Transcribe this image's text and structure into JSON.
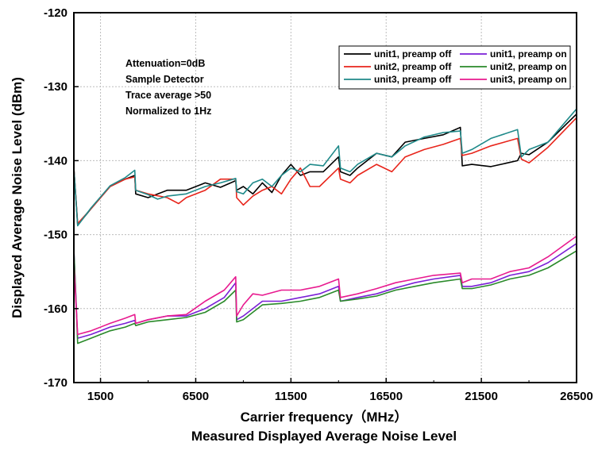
{
  "chart_data": {
    "type": "line",
    "title": "",
    "caption": "Measured Displayed Average Noise Level",
    "xlabel": "Carrier frequency（MHz）",
    "ylabel": "Displayed Average Noise Level (dBm)",
    "xlim": [
      100,
      26500
    ],
    "ylim": [
      -170,
      -120
    ],
    "xticks": [
      1500,
      6500,
      11500,
      16500,
      21500,
      26500
    ],
    "xtick_labels": [
      "1500",
      "6500",
      "11500",
      "16500",
      "21500",
      "26500"
    ],
    "yticks": [
      -120,
      -130,
      -140,
      -150,
      -160,
      -170
    ],
    "ytick_labels": [
      "-120",
      "-130",
      "-140",
      "-150",
      "-160",
      "-170"
    ],
    "grid": true,
    "legend_position": "top-right",
    "annotations": [
      "Attenuation=0dB",
      "Sample Detector",
      "Trace average >50",
      "Normalized to 1Hz"
    ],
    "series": [
      {
        "name": "unit1, preamp off",
        "color": "#000000",
        "x": [
          100,
          300,
          1000,
          2000,
          2800,
          3300,
          3350,
          4000,
          5000,
          6000,
          7000,
          7800,
          8600,
          8650,
          9000,
          9500,
          10000,
          10500,
          11000,
          11500,
          12000,
          12500,
          13200,
          14000,
          14100,
          14600,
          15000,
          16000,
          16800,
          17500,
          18500,
          19500,
          20400,
          20500,
          21000,
          22000,
          23400,
          23600,
          24000,
          25000,
          26500
        ],
        "y": [
          -141,
          -148.7,
          -146.5,
          -143.5,
          -142.5,
          -142,
          -144.5,
          -145,
          -144,
          -144,
          -143,
          -143.6,
          -142.7,
          -144,
          -143.5,
          -144.5,
          -143,
          -144.3,
          -142,
          -140.5,
          -142,
          -141.5,
          -141.5,
          -139.5,
          -141.5,
          -142,
          -141,
          -139,
          -139.5,
          -137.5,
          -137,
          -136.5,
          -135.5,
          -140.7,
          -140.5,
          -140.8,
          -140,
          -139,
          -139.2,
          -137.5,
          -133.7
        ]
      },
      {
        "name": "unit2, preamp off",
        "color": "#e8251b",
        "x": [
          100,
          300,
          1000,
          2000,
          2800,
          3300,
          3350,
          4000,
          5000,
          5600,
          6000,
          7000,
          7800,
          8600,
          8650,
          9000,
          9500,
          10000,
          10500,
          11000,
          11500,
          12000,
          12500,
          13000,
          14000,
          14100,
          14600,
          15000,
          16000,
          16800,
          17500,
          18500,
          19500,
          20400,
          20500,
          21000,
          22000,
          23400,
          23600,
          24000,
          25000,
          26500
        ],
        "y": [
          -141,
          -148.5,
          -146.5,
          -143.5,
          -142.5,
          -142.2,
          -144,
          -144.5,
          -145,
          -145.8,
          -145,
          -144,
          -142.5,
          -142.5,
          -145,
          -146,
          -144.8,
          -144,
          -143.5,
          -144.5,
          -142.5,
          -141,
          -143.5,
          -143.5,
          -141,
          -142.5,
          -143,
          -142,
          -140.5,
          -141.5,
          -139.5,
          -138.5,
          -137.8,
          -137,
          -139.3,
          -139,
          -138,
          -137,
          -139.8,
          -140.3,
          -138.2,
          -134.2
        ]
      },
      {
        "name": "unit3, preamp off",
        "color": "#1f8a8a",
        "x": [
          100,
          300,
          1000,
          2000,
          2800,
          3300,
          3350,
          4000,
          4500,
          5000,
          6000,
          7000,
          7800,
          8600,
          8650,
          9000,
          9500,
          10000,
          10500,
          11000,
          11500,
          12000,
          12500,
          13200,
          14000,
          14100,
          14600,
          15000,
          16000,
          16800,
          17500,
          18500,
          19500,
          20400,
          20500,
          21000,
          22000,
          23400,
          23600,
          24000,
          25000,
          26500
        ],
        "y": [
          -141,
          -148.8,
          -146.4,
          -143.4,
          -142.3,
          -141.3,
          -144,
          -144.6,
          -145.2,
          -144.8,
          -144.5,
          -143.5,
          -143,
          -142.4,
          -144.2,
          -144.5,
          -143,
          -142.5,
          -143.5,
          -142,
          -141,
          -141.5,
          -140.5,
          -140.7,
          -138,
          -141,
          -141.5,
          -140.5,
          -139,
          -139.5,
          -138,
          -136.8,
          -136.2,
          -136,
          -139,
          -138.5,
          -137,
          -135.8,
          -139.5,
          -138.5,
          -137.5,
          -133
        ]
      },
      {
        "name": "unit1, preamp on",
        "color": "#7a1fd6",
        "x": [
          100,
          300,
          1000,
          2000,
          2800,
          3300,
          3350,
          4000,
          5000,
          6000,
          7000,
          8000,
          8600,
          8650,
          9000,
          10000,
          11000,
          12000,
          13000,
          14000,
          14100,
          15000,
          16000,
          17000,
          18000,
          19000,
          20400,
          20500,
          21000,
          22000,
          23000,
          24000,
          25000,
          26500
        ],
        "y": [
          -152,
          -164,
          -163.5,
          -162.5,
          -162,
          -161.6,
          -162,
          -161.5,
          -161,
          -161,
          -160,
          -158.5,
          -156.5,
          -161.5,
          -161,
          -159,
          -159,
          -158.5,
          -158,
          -157,
          -159,
          -158.5,
          -158,
          -157.2,
          -156.5,
          -156,
          -155.5,
          -157,
          -157,
          -156.5,
          -155.5,
          -155,
          -153.8,
          -151.2
        ]
      },
      {
        "name": "unit2, preamp on",
        "color": "#2a8a2a",
        "x": [
          100,
          300,
          1000,
          2000,
          2800,
          3300,
          3350,
          4000,
          5000,
          6000,
          7000,
          8000,
          8600,
          8650,
          9000,
          10000,
          11000,
          12000,
          13000,
          14000,
          14100,
          15000,
          16000,
          17000,
          18000,
          19000,
          20400,
          20500,
          21000,
          22000,
          23000,
          24000,
          25000,
          26500
        ],
        "y": [
          -152,
          -164.7,
          -164,
          -163,
          -162.5,
          -162,
          -162.3,
          -161.8,
          -161.5,
          -161.2,
          -160.5,
          -159,
          -157.5,
          -161.8,
          -161.5,
          -159.5,
          -159.3,
          -159,
          -158.5,
          -157.5,
          -159,
          -158.7,
          -158.3,
          -157.5,
          -157,
          -156.5,
          -156,
          -157.3,
          -157.3,
          -156.8,
          -156,
          -155.5,
          -154.5,
          -152.2
        ]
      },
      {
        "name": "unit3, preamp on",
        "color": "#e81a8f",
        "x": [
          100,
          300,
          1000,
          2000,
          2800,
          3300,
          3350,
          4000,
          5000,
          6000,
          7000,
          8000,
          8600,
          8650,
          9000,
          9500,
          10000,
          11000,
          12000,
          13000,
          14000,
          14100,
          15000,
          16000,
          17000,
          18000,
          19000,
          20400,
          20500,
          21000,
          22000,
          23000,
          24000,
          25000,
          26500
        ],
        "y": [
          -154,
          -163.5,
          -163,
          -162,
          -161.3,
          -160.8,
          -162,
          -161.5,
          -161,
          -160.8,
          -159,
          -157.5,
          -155.7,
          -161,
          -159.5,
          -158,
          -158.2,
          -157.5,
          -157.5,
          -157,
          -156,
          -158.5,
          -158,
          -157.3,
          -156.5,
          -156,
          -155.5,
          -155.2,
          -156.5,
          -156,
          -156,
          -155,
          -154.5,
          -153,
          -150.2
        ]
      }
    ]
  }
}
